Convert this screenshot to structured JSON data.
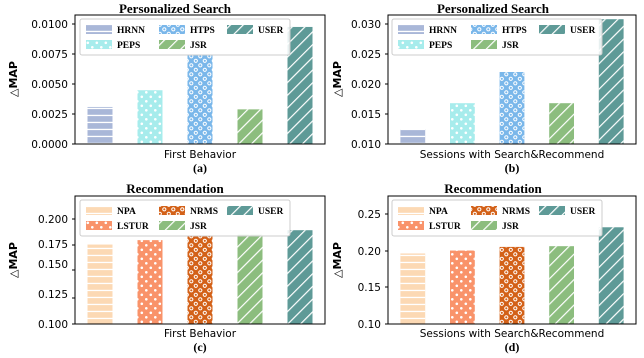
{
  "colors": {
    "HRNN": "#a9b7d8",
    "HTPS": "#7ab7ea",
    "PEPS": "#a7ecec",
    "JSR": "#8cbd7e",
    "USER": "#5e9a97",
    "NPA": "#fcd9b4",
    "LSTUR": "#f9936a",
    "NRMS": "#d36118"
  },
  "chart_data": [
    {
      "type": "bar",
      "panel": "a",
      "title": "Personalized Search",
      "caption": "(a)",
      "xlabel": "First Behavior",
      "ylabel": "△MAP",
      "ylim": [
        0,
        0.0108
      ],
      "yticks": [
        "0.0000",
        "0.0025",
        "0.0050",
        "0.0075",
        "0.0100"
      ],
      "categories": [
        "HRNN",
        "PEPS",
        "HTPS",
        "JSR",
        "USER"
      ],
      "values": [
        0.0031,
        0.0045,
        0.0075,
        0.0029,
        0.0098
      ],
      "legend": [
        [
          "HRNN",
          "HTPS",
          "USER"
        ],
        [
          "PEPS",
          "JSR"
        ]
      ]
    },
    {
      "type": "bar",
      "panel": "b",
      "title": "Personalized Search",
      "caption": "(b)",
      "xlabel": "Sessions with Search&Recommend",
      "ylabel": "△MAP",
      "ylim": [
        0.01,
        0.0315
      ],
      "yticks": [
        "0.010",
        "0.015",
        "0.020",
        "0.025",
        "0.030"
      ],
      "categories": [
        "HRNN",
        "PEPS",
        "HTPS",
        "JSR",
        "USER"
      ],
      "values": [
        0.0125,
        0.0168,
        0.022,
        0.0168,
        0.0308
      ],
      "legend": [
        [
          "HRNN",
          "HTPS",
          "USER"
        ],
        [
          "PEPS",
          "JSR"
        ]
      ]
    },
    {
      "type": "bar",
      "panel": "c",
      "title": "Recommendation",
      "caption": "(c)",
      "xlabel": "First Behavior",
      "ylabel": "△MAP",
      "ylim": [
        0.1,
        0.216
      ],
      "yticks": [
        "0.100",
        "0.125",
        "0.150",
        "0.175",
        "0.200"
      ],
      "categories": [
        "NPA",
        "LSTUR",
        "NRMS",
        "JSR",
        "USER"
      ],
      "values": [
        0.172,
        0.176,
        0.18,
        0.181,
        0.185
      ],
      "legend": [
        [
          "NPA",
          "NRMS",
          "USER"
        ],
        [
          "LSTUR",
          "JSR"
        ]
      ]
    },
    {
      "type": "bar",
      "panel": "d",
      "title": "Recommendation",
      "caption": "(d)",
      "xlabel": "Sessions with Search&Recommend",
      "ylabel": "△MAP",
      "ylim": [
        0.1,
        0.276
      ],
      "yticks": [
        "0.10",
        "0.15",
        "0.20",
        "0.25"
      ],
      "categories": [
        "NPA",
        "LSTUR",
        "NRMS",
        "JSR",
        "USER"
      ],
      "values": [
        0.197,
        0.201,
        0.206,
        0.207,
        0.233
      ],
      "legend": [
        [
          "NPA",
          "NRMS",
          "USER"
        ],
        [
          "LSTUR",
          "JSR"
        ]
      ]
    }
  ]
}
